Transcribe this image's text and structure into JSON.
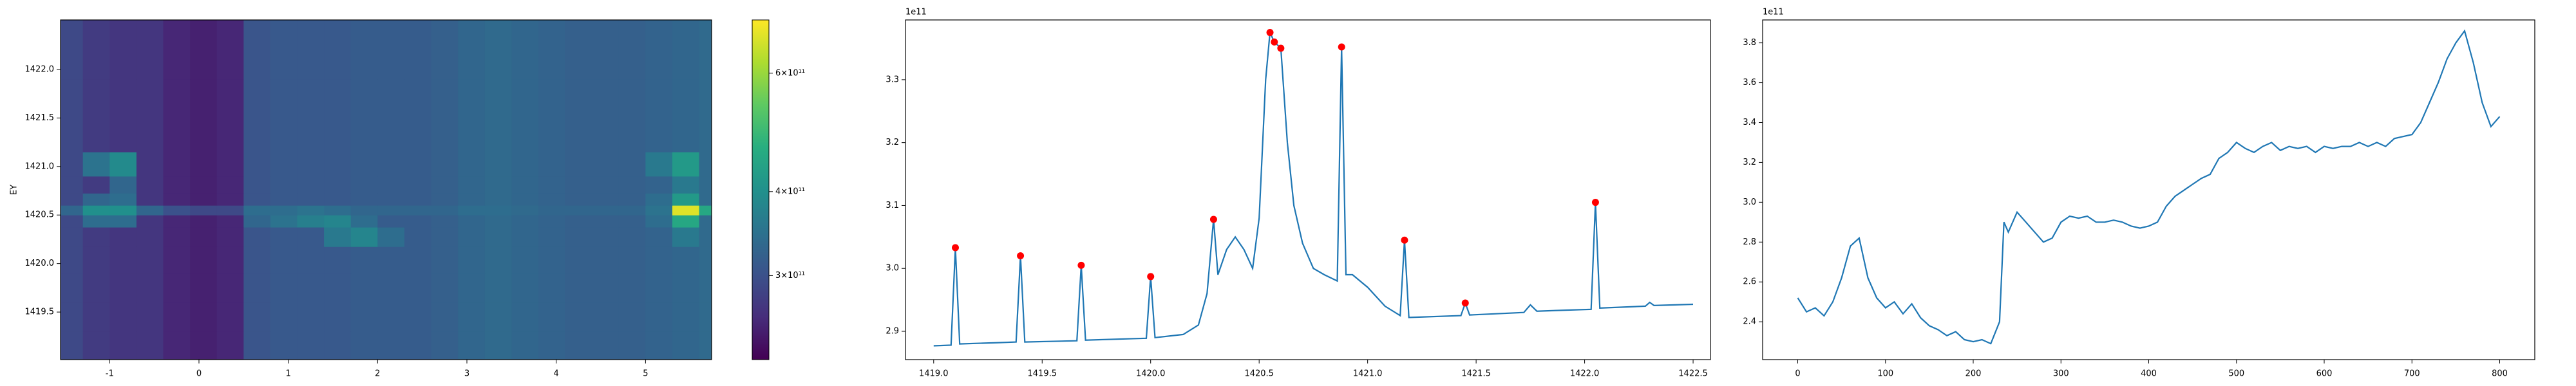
{
  "chart_data": [
    {
      "type": "heatmap",
      "ylabel": "EY",
      "colormap": "viridis",
      "xlim": [
        -1.55,
        5.74
      ],
      "ylim": [
        1419.01,
        1422.51
      ],
      "xticks": [
        -1,
        0,
        1,
        2,
        3,
        4,
        5
      ],
      "yticks": [
        1419.5,
        {
          "value": 1420,
          "label": "1420.0"
        },
        1420.5,
        {
          "value": 1421,
          "label": "1421.0"
        },
        1421.5,
        {
          "value": 1422,
          "label": "1422.0"
        }
      ],
      "x": [
        -1.45,
        -1.15,
        -0.85,
        -0.55,
        -0.25,
        0.05,
        0.35,
        0.65,
        0.95,
        1.25,
        1.55,
        1.85,
        2.15,
        2.45,
        2.75,
        3.05,
        3.35,
        3.65,
        3.95,
        4.25,
        4.55,
        4.85,
        5.15,
        5.45,
        5.75
      ],
      "y": [
        1419.15,
        1419.45,
        1419.75,
        1420.05,
        1420.3,
        1420.45,
        1420.55,
        1420.65,
        1420.8,
        1421.0,
        1421.3,
        1421.7,
        1422.1
      ],
      "z": [
        [
          290000000000.0,
          275000000000.0,
          270000000000.0,
          270000000000.0,
          255000000000.0,
          250000000000.0,
          255000000000.0,
          305000000000.0,
          310000000000.0,
          310000000000.0,
          310000000000.0,
          315000000000.0,
          315000000000.0,
          315000000000.0,
          320000000000.0,
          330000000000.0,
          335000000000.0,
          330000000000.0,
          325000000000.0,
          320000000000.0,
          320000000000.0,
          320000000000.0,
          325000000000.0,
          330000000000.0,
          335000000000.0
        ],
        [
          290000000000.0,
          275000000000.0,
          270000000000.0,
          270000000000.0,
          255000000000.0,
          250000000000.0,
          255000000000.0,
          305000000000.0,
          310000000000.0,
          310000000000.0,
          310000000000.0,
          315000000000.0,
          315000000000.0,
          315000000000.0,
          320000000000.0,
          330000000000.0,
          335000000000.0,
          330000000000.0,
          325000000000.0,
          320000000000.0,
          320000000000.0,
          320000000000.0,
          325000000000.0,
          330000000000.0,
          335000000000.0
        ],
        [
          290000000000.0,
          275000000000.0,
          270000000000.0,
          270000000000.0,
          255000000000.0,
          250000000000.0,
          255000000000.0,
          305000000000.0,
          310000000000.0,
          310000000000.0,
          310000000000.0,
          315000000000.0,
          315000000000.0,
          315000000000.0,
          320000000000.0,
          330000000000.0,
          335000000000.0,
          330000000000.0,
          325000000000.0,
          320000000000.0,
          320000000000.0,
          320000000000.0,
          325000000000.0,
          330000000000.0,
          335000000000.0
        ],
        [
          290000000000.0,
          275000000000.0,
          270000000000.0,
          270000000000.0,
          255000000000.0,
          250000000000.0,
          255000000000.0,
          305000000000.0,
          310000000000.0,
          310000000000.0,
          310000000000.0,
          315000000000.0,
          315000000000.0,
          315000000000.0,
          320000000000.0,
          330000000000.0,
          335000000000.0,
          330000000000.0,
          325000000000.0,
          320000000000.0,
          320000000000.0,
          320000000000.0,
          325000000000.0,
          330000000000.0,
          335000000000.0
        ],
        [
          290000000000.0,
          275000000000.0,
          270000000000.0,
          270000000000.0,
          255000000000.0,
          250000000000.0,
          255000000000.0,
          305000000000.0,
          310000000000.0,
          310000000000.0,
          360000000000.0,
          380000000000.0,
          340000000000.0,
          315000000000.0,
          320000000000.0,
          330000000000.0,
          335000000000.0,
          330000000000.0,
          325000000000.0,
          320000000000.0,
          320000000000.0,
          320000000000.0,
          325000000000.0,
          360000000000.0,
          335000000000.0
        ],
        [
          290000000000.0,
          340000000000.0,
          340000000000.0,
          270000000000.0,
          255000000000.0,
          250000000000.0,
          255000000000.0,
          330000000000.0,
          350000000000.0,
          370000000000.0,
          380000000000.0,
          340000000000.0,
          315000000000.0,
          315000000000.0,
          320000000000.0,
          330000000000.0,
          335000000000.0,
          330000000000.0,
          325000000000.0,
          320000000000.0,
          320000000000.0,
          320000000000.0,
          340000000000.0,
          450000000000.0,
          335000000000.0
        ],
        [
          330000000000.0,
          400000000000.0,
          400000000000.0,
          330000000000.0,
          300000000000.0,
          290000000000.0,
          290000000000.0,
          340000000000.0,
          340000000000.0,
          350000000000.0,
          340000000000.0,
          330000000000.0,
          330000000000.0,
          330000000000.0,
          330000000000.0,
          340000000000.0,
          340000000000.0,
          335000000000.0,
          330000000000.0,
          330000000000.0,
          330000000000.0,
          330000000000.0,
          350000000000.0,
          680000000000.0,
          450000000000.0
        ],
        [
          290000000000.0,
          330000000000.0,
          340000000000.0,
          270000000000.0,
          255000000000.0,
          250000000000.0,
          255000000000.0,
          305000000000.0,
          310000000000.0,
          310000000000.0,
          310000000000.0,
          315000000000.0,
          315000000000.0,
          315000000000.0,
          320000000000.0,
          330000000000.0,
          335000000000.0,
          330000000000.0,
          325000000000.0,
          320000000000.0,
          320000000000.0,
          320000000000.0,
          340000000000.0,
          420000000000.0,
          335000000000.0
        ],
        [
          290000000000.0,
          275000000000.0,
          330000000000.0,
          270000000000.0,
          255000000000.0,
          250000000000.0,
          255000000000.0,
          305000000000.0,
          310000000000.0,
          310000000000.0,
          310000000000.0,
          315000000000.0,
          315000000000.0,
          315000000000.0,
          320000000000.0,
          330000000000.0,
          335000000000.0,
          330000000000.0,
          325000000000.0,
          320000000000.0,
          320000000000.0,
          320000000000.0,
          325000000000.0,
          360000000000.0,
          335000000000.0
        ],
        [
          290000000000.0,
          350000000000.0,
          390000000000.0,
          270000000000.0,
          255000000000.0,
          250000000000.0,
          255000000000.0,
          305000000000.0,
          310000000000.0,
          310000000000.0,
          310000000000.0,
          315000000000.0,
          315000000000.0,
          315000000000.0,
          320000000000.0,
          330000000000.0,
          335000000000.0,
          330000000000.0,
          325000000000.0,
          320000000000.0,
          320000000000.0,
          320000000000.0,
          360000000000.0,
          420000000000.0,
          335000000000.0
        ],
        [
          290000000000.0,
          275000000000.0,
          270000000000.0,
          270000000000.0,
          255000000000.0,
          250000000000.0,
          255000000000.0,
          305000000000.0,
          310000000000.0,
          310000000000.0,
          310000000000.0,
          315000000000.0,
          315000000000.0,
          315000000000.0,
          320000000000.0,
          330000000000.0,
          335000000000.0,
          330000000000.0,
          325000000000.0,
          320000000000.0,
          320000000000.0,
          320000000000.0,
          325000000000.0,
          330000000000.0,
          335000000000.0
        ],
        [
          290000000000.0,
          275000000000.0,
          270000000000.0,
          270000000000.0,
          255000000000.0,
          250000000000.0,
          255000000000.0,
          305000000000.0,
          310000000000.0,
          310000000000.0,
          310000000000.0,
          315000000000.0,
          315000000000.0,
          315000000000.0,
          320000000000.0,
          330000000000.0,
          335000000000.0,
          330000000000.0,
          325000000000.0,
          320000000000.0,
          320000000000.0,
          320000000000.0,
          325000000000.0,
          330000000000.0,
          335000000000.0
        ],
        [
          290000000000.0,
          275000000000.0,
          270000000000.0,
          270000000000.0,
          255000000000.0,
          250000000000.0,
          255000000000.0,
          305000000000.0,
          310000000000.0,
          310000000000.0,
          310000000000.0,
          315000000000.0,
          315000000000.0,
          315000000000.0,
          320000000000.0,
          330000000000.0,
          335000000000.0,
          330000000000.0,
          325000000000.0,
          320000000000.0,
          320000000000.0,
          320000000000.0,
          325000000000.0,
          330000000000.0,
          335000000000.0
        ]
      ],
      "colorbar": {
        "scale": "log",
        "lim": [
          225000000000.0,
          720000000000.0
        ],
        "ticks": [
          {
            "value": 300000000000.0,
            "label": "3×10¹¹"
          },
          {
            "value": 400000000000.0,
            "label": "4×10¹¹"
          },
          {
            "value": 600000000000.0,
            "label": "6×10¹¹"
          }
        ]
      }
    },
    {
      "type": "line",
      "offset_text": "1e11",
      "xlim": [
        1418.87,
        1422.58
      ],
      "ylim": [
        2.855,
        3.395
      ],
      "xticks": [
        {
          "value": 1419,
          "label": "1419.0"
        },
        1419.5,
        {
          "value": 1420,
          "label": "1420.0"
        },
        1420.5,
        {
          "value": 1421,
          "label": "1421.0"
        },
        1421.5,
        {
          "value": 1422,
          "label": "1422.0"
        },
        1422.5
      ],
      "yticks": [
        2.9,
        {
          "value": 3,
          "label": "3.0"
        },
        3.1,
        3.2,
        3.3
      ],
      "series": [
        {
          "color": "#1f77b4",
          "style": "line",
          "x": [
            1419.0,
            1419.08,
            1419.1,
            1419.12,
            1419.3,
            1419.38,
            1419.4,
            1419.42,
            1419.66,
            1419.68,
            1419.7,
            1419.98,
            1420.0,
            1420.02,
            1420.15,
            1420.22,
            1420.26,
            1420.29,
            1420.31,
            1420.35,
            1420.39,
            1420.43,
            1420.47,
            1420.5,
            1420.53,
            1420.55,
            1420.57,
            1420.6,
            1420.63,
            1420.66,
            1420.7,
            1420.75,
            1420.8,
            1420.86,
            1420.88,
            1420.9,
            1420.93,
            1421.0,
            1421.08,
            1421.15,
            1421.17,
            1421.19,
            1421.43,
            1421.45,
            1421.47,
            1421.72,
            1421.75,
            1421.78,
            1422.03,
            1422.05,
            1422.07,
            1422.28,
            1422.3,
            1422.32,
            1422.5
          ],
          "values": [
            2.877,
            2.878,
            3.033,
            2.88,
            2.882,
            2.883,
            3.02,
            2.883,
            2.885,
            3.005,
            2.886,
            2.889,
            2.987,
            2.89,
            2.895,
            2.91,
            2.96,
            3.078,
            2.99,
            3.03,
            3.05,
            3.03,
            3.0,
            3.08,
            3.3,
            3.375,
            3.36,
            3.35,
            3.2,
            3.1,
            3.04,
            3.0,
            2.99,
            2.98,
            3.352,
            2.99,
            2.99,
            2.97,
            2.94,
            2.925,
            3.045,
            2.922,
            2.925,
            2.945,
            2.926,
            2.93,
            2.942,
            2.932,
            2.935,
            3.105,
            2.937,
            2.94,
            2.946,
            2.941,
            2.943
          ]
        },
        {
          "color": "red",
          "style": "points",
          "x": [
            1419.1,
            1419.4,
            1419.68,
            1420.0,
            1420.29,
            1420.55,
            1420.57,
            1420.6,
            1420.88,
            1421.17,
            1421.45,
            1422.05
          ],
          "values": [
            3.033,
            3.02,
            3.005,
            2.987,
            3.078,
            3.375,
            3.36,
            3.35,
            3.352,
            3.045,
            2.945,
            3.105
          ]
        }
      ]
    },
    {
      "type": "line",
      "offset_text": "1e11",
      "xlim": [
        -40,
        840
      ],
      "ylim": [
        2.21,
        3.915
      ],
      "xticks": [
        0,
        100,
        200,
        300,
        400,
        500,
        600,
        700,
        800
      ],
      "yticks": [
        2.4,
        2.6,
        2.8,
        {
          "value": 3,
          "label": "3.0"
        },
        3.2,
        3.4,
        3.6,
        3.8
      ],
      "series": [
        {
          "color": "#1f77b4",
          "style": "line",
          "x": [
            0,
            10,
            20,
            30,
            40,
            50,
            60,
            70,
            80,
            90,
            100,
            110,
            120,
            130,
            140,
            150,
            160,
            170,
            180,
            190,
            200,
            210,
            220,
            230,
            235,
            240,
            250,
            260,
            270,
            280,
            290,
            300,
            310,
            320,
            330,
            340,
            350,
            360,
            370,
            380,
            390,
            400,
            410,
            420,
            430,
            440,
            450,
            460,
            470,
            480,
            490,
            500,
            510,
            520,
            530,
            540,
            550,
            560,
            570,
            580,
            590,
            600,
            610,
            620,
            630,
            640,
            650,
            660,
            670,
            680,
            690,
            700,
            710,
            720,
            730,
            740,
            750,
            760,
            770,
            780,
            790,
            800
          ],
          "values": [
            2.52,
            2.45,
            2.47,
            2.43,
            2.5,
            2.62,
            2.78,
            2.82,
            2.62,
            2.52,
            2.47,
            2.5,
            2.44,
            2.49,
            2.42,
            2.38,
            2.36,
            2.33,
            2.35,
            2.31,
            2.3,
            2.31,
            2.29,
            2.4,
            2.9,
            2.85,
            2.95,
            2.9,
            2.85,
            2.8,
            2.82,
            2.9,
            2.93,
            2.92,
            2.93,
            2.9,
            2.9,
            2.91,
            2.9,
            2.88,
            2.87,
            2.88,
            2.9,
            2.98,
            3.03,
            3.06,
            3.09,
            3.12,
            3.14,
            3.22,
            3.25,
            3.3,
            3.27,
            3.25,
            3.28,
            3.3,
            3.26,
            3.28,
            3.27,
            3.28,
            3.25,
            3.28,
            3.27,
            3.28,
            3.28,
            3.3,
            3.28,
            3.3,
            3.28,
            3.32,
            3.33,
            3.34,
            3.4,
            3.5,
            3.6,
            3.72,
            3.8,
            3.86,
            3.7,
            3.5,
            3.38,
            3.43
          ]
        }
      ]
    }
  ]
}
